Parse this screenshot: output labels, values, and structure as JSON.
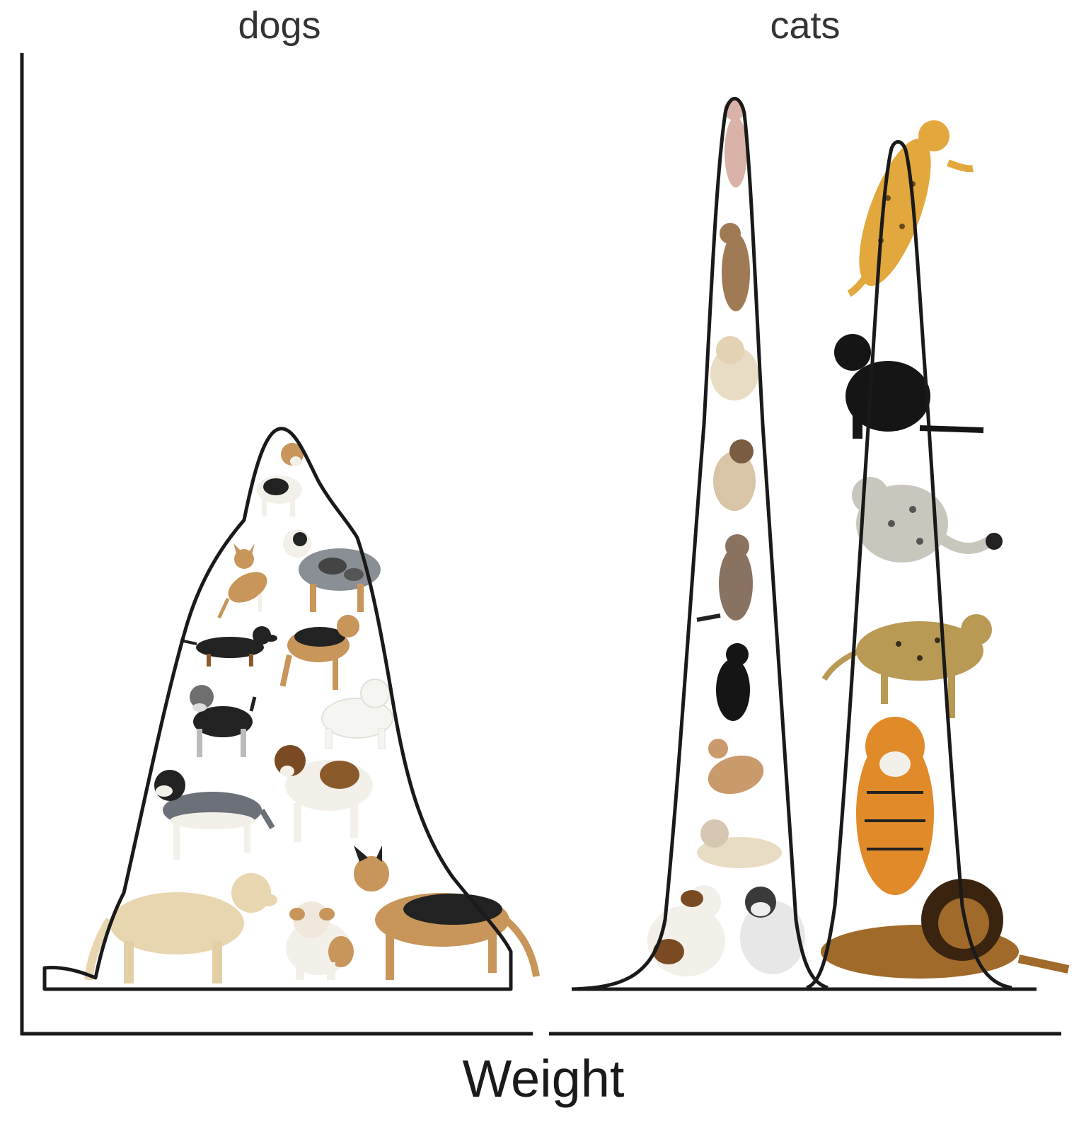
{
  "titles": {
    "left": "dogs",
    "right": "cats"
  },
  "axis": {
    "xlabel": "Weight"
  },
  "colors": {
    "outline": "#1a1a1a",
    "dog_tan": "#c8955a",
    "dog_black": "#222222",
    "dog_white": "#f3f0ea",
    "dog_cream": "#e8d6b0",
    "dog_grey": "#8a8f96",
    "cat_tabby": "#a07a55",
    "cat_black": "#151515",
    "cat_cream": "#e9dcc4",
    "cheetah": "#e3a83d",
    "leopard": "#b89a55",
    "snow_leopard": "#c9c6bd",
    "tiger": "#e08a2a",
    "lion": "#8a5a22"
  },
  "groups": [
    {
      "id": "dogs",
      "curves": 1,
      "animals": [
        "beagle",
        "chihuahua",
        "australian-shepherd",
        "dachshund",
        "airedale",
        "schnauzer",
        "poodle",
        "husky",
        "saint-bernard",
        "golden-retriever",
        "bulldog",
        "german-shepherd"
      ]
    },
    {
      "id": "cats",
      "curves": 2,
      "animals": [
        "sphynx",
        "abyssinian",
        "persian-cream",
        "siamese",
        "maine-coon",
        "black-cat",
        "orange-cat",
        "ragdoll",
        "calico-persian",
        "white-fluffy",
        "cheetah",
        "panther",
        "snow-leopard",
        "leopard",
        "tiger",
        "lion"
      ]
    }
  ]
}
